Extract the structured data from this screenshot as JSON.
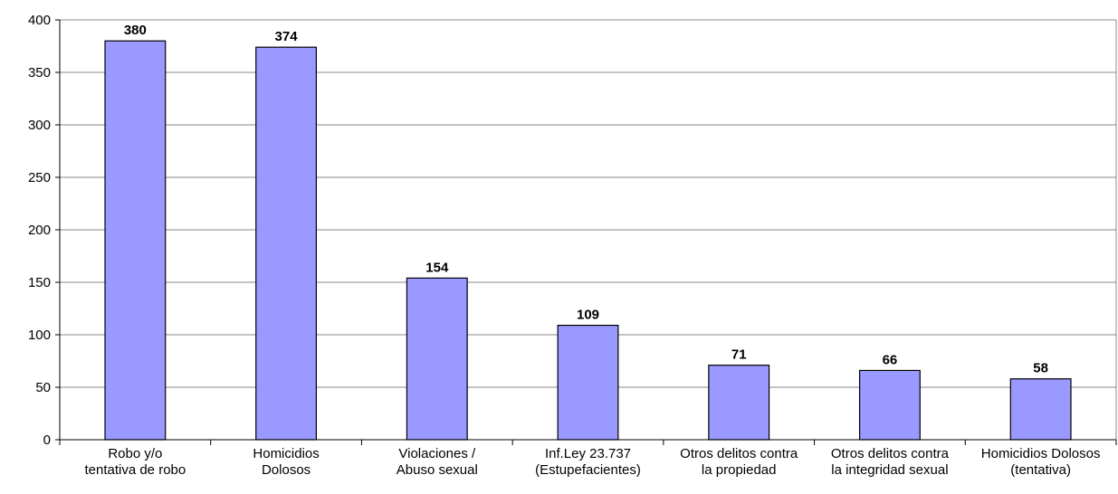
{
  "chart_data": {
    "type": "bar",
    "categories": [
      "Robo y/o\ntentativa de robo",
      "Homicidios\nDolosos",
      "Violaciones /\nAbuso sexual",
      "Inf.Ley 23.737\n(Estupefacientes)",
      "Otros delitos contra\nla propiedad",
      "Otros delitos contra\nla integridad sexual",
      "Homicidios Dolosos\n(tentativa)"
    ],
    "values": [
      380,
      374,
      154,
      109,
      71,
      66,
      58
    ],
    "color": "#9999ff",
    "ylim": [
      0,
      400
    ],
    "yticks": [
      0,
      50,
      100,
      150,
      200,
      250,
      300,
      350,
      400
    ],
    "grid": true
  }
}
